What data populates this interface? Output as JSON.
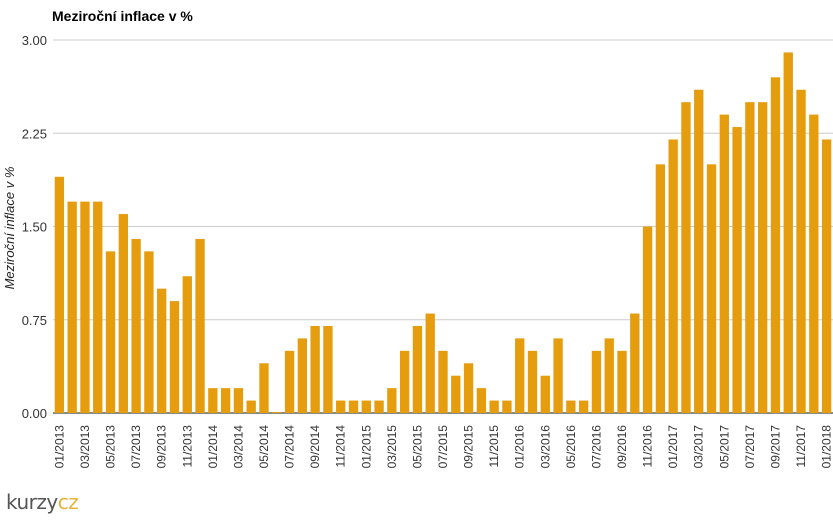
{
  "chart_data": {
    "type": "bar",
    "title": "Meziroční inflace v %",
    "xlabel": "",
    "ylabel": "Meziroční inflace v %",
    "ylim": [
      0,
      3
    ],
    "yticks": [
      "0.00",
      "0.75",
      "1.50",
      "2.25",
      "3.00"
    ],
    "grid": true,
    "bar_color": "#e59c0d",
    "series": [
      {
        "values": [
          1.9,
          1.7,
          1.7,
          1.7,
          1.3,
          1.6,
          1.4,
          1.3,
          1.0,
          0.9,
          1.1,
          1.4,
          0.2,
          0.2,
          0.2,
          0.1,
          0.4,
          0.0,
          0.5,
          0.6,
          0.7,
          0.7,
          0.1,
          0.1,
          0.1,
          0.1,
          0.2,
          0.5,
          0.7,
          0.8,
          0.5,
          0.3,
          0.4,
          0.2,
          0.1,
          0.1,
          0.6,
          0.5,
          0.3,
          0.6,
          0.1,
          0.1,
          0.5,
          0.6,
          0.5,
          0.8,
          1.5,
          2.0,
          2.2,
          2.5,
          2.6,
          2.0,
          2.4,
          2.3,
          2.5,
          2.5,
          2.7,
          2.9,
          2.6,
          2.4,
          2.2
        ]
      }
    ],
    "categories": [
      "01/2013",
      "",
      "03/2013",
      "",
      "05/2013",
      "",
      "07/2013",
      "",
      "09/2013",
      "",
      "11/2013",
      "",
      "01/2014",
      "",
      "03/2014",
      "",
      "05/2014",
      "",
      "07/2014",
      "",
      "09/2014",
      "",
      "11/2014",
      "",
      "01/2015",
      "",
      "03/2015",
      "",
      "05/2015",
      "",
      "07/2015",
      "",
      "09/2015",
      "",
      "11/2015",
      "",
      "01/2016",
      "",
      "03/2016",
      "",
      "05/2016",
      "",
      "07/2016",
      "",
      "09/2016",
      "",
      "11/2016",
      "",
      "01/2017",
      "",
      "03/2017",
      "",
      "05/2017",
      "",
      "07/2017",
      "",
      "09/2017",
      "",
      "11/2017",
      "",
      "01/2018"
    ]
  },
  "brand": {
    "part1": "kurzy",
    "part2": "cz"
  }
}
